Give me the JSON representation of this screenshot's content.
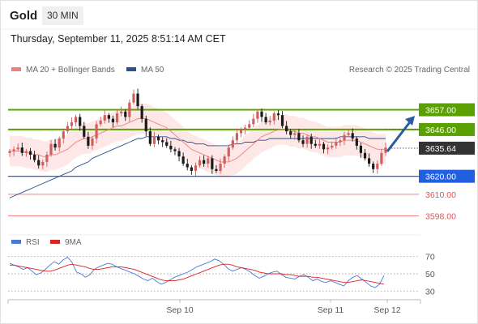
{
  "header": {
    "title": "Gold",
    "timeframe": "30 MIN",
    "datetime": "Thursday, September 11, 2025 8:51:14 AM CET"
  },
  "colors": {
    "ma20": "#f08080",
    "ma50": "#2f4f8f",
    "resistance": "#5aa000",
    "support": "#1f5fe0",
    "support_minor": "#e65050",
    "bull_candle": "#d06060",
    "bear_candle": "#1a1a1a",
    "bollinger_fill": "#fde3e3",
    "rsi": "#4a78d8",
    "rsi_ma": "#dd2222",
    "arrow": "#2a5a9f"
  },
  "legend": {
    "ma20_label": "MA 20 + Bollinger Bands",
    "ma50_label": "MA 50",
    "credit": "Research © 2025 Trading Central"
  },
  "rsi_legend": {
    "rsi_label": "RSI",
    "ma_label": "9MA"
  },
  "chart_data": [
    {
      "type": "candlestick",
      "title": "Gold 30 MIN",
      "ylim": [
        3591,
        3673
      ],
      "x_ticks": [
        "Sep 10",
        "Sep 11",
        "Sep 12"
      ],
      "current_price": 3635.64,
      "levels": [
        {
          "value": 3657.0,
          "label": "3657.00",
          "kind": "resistance"
        },
        {
          "value": 3646.0,
          "label": "3646.00",
          "kind": "resistance"
        },
        {
          "value": 3620.0,
          "label": "3620.00",
          "kind": "support"
        },
        {
          "value": 3610.0,
          "label": "3610.00",
          "kind": "support_minor"
        },
        {
          "value": 3598.0,
          "label": "3598.00",
          "kind": "support_minor"
        }
      ],
      "current_label": "3635.64",
      "candles_close": [
        3634,
        3635,
        3636,
        3633,
        3634,
        3632,
        3629,
        3626,
        3628,
        3632,
        3638,
        3636,
        3641,
        3645,
        3648,
        3650,
        3653,
        3648,
        3642,
        3637,
        3641,
        3649,
        3651,
        3654,
        3652,
        3650,
        3655,
        3656,
        3653,
        3661,
        3666,
        3659,
        3652,
        3645,
        3638,
        3642,
        3640,
        3639,
        3637,
        3635,
        3634,
        3631,
        3627,
        3625,
        3623,
        3626,
        3629,
        3627,
        3630,
        3624,
        3623,
        3627,
        3631,
        3636,
        3640,
        3644,
        3646,
        3647,
        3649,
        3652,
        3656,
        3653,
        3650,
        3651,
        3655,
        3654,
        3648,
        3645,
        3643,
        3644,
        3640,
        3638,
        3642,
        3638,
        3637,
        3638,
        3635,
        3636,
        3637,
        3639,
        3640,
        3643,
        3644,
        3641,
        3637,
        3633,
        3630,
        3627,
        3624,
        3627,
        3633,
        3636
      ],
      "ma20": [
        3634,
        3634,
        3634,
        3634,
        3633,
        3633,
        3632,
        3632,
        3631,
        3631,
        3632,
        3632,
        3633,
        3634,
        3635,
        3637,
        3639,
        3640,
        3641,
        3641,
        3642,
        3643,
        3644,
        3645,
        3646,
        3647,
        3648,
        3648,
        3649,
        3650,
        3651,
        3652,
        3652,
        3652,
        3651,
        3650,
        3649,
        3648,
        3647,
        3645,
        3643,
        3641,
        3639,
        3637,
        3635,
        3634,
        3633,
        3632,
        3631,
        3630,
        3629,
        3628,
        3628,
        3628,
        3629,
        3630,
        3632,
        3634,
        3636,
        3638,
        3640,
        3642,
        3643,
        3644,
        3645,
        3646,
        3646,
        3646,
        3645,
        3645,
        3644,
        3644,
        3643,
        3642,
        3642,
        3641,
        3640,
        3639,
        3639,
        3639,
        3639,
        3640,
        3640,
        3640,
        3640,
        3639,
        3638,
        3637,
        3636,
        3635,
        3635,
        3635
      ],
      "ma50": [
        3608,
        3609,
        3610,
        3611,
        3612,
        3613,
        3614,
        3615,
        3616,
        3617,
        3618,
        3619,
        3620,
        3621,
        3622,
        3623,
        3625,
        3626,
        3627,
        3628,
        3630,
        3631,
        3632,
        3633,
        3634,
        3635,
        3636,
        3637,
        3638,
        3639,
        3640,
        3641,
        3641,
        3642,
        3642,
        3642,
        3642,
        3642,
        3642,
        3641,
        3641,
        3640,
        3640,
        3639,
        3639,
        3638,
        3638,
        3638,
        3637,
        3637,
        3637,
        3637,
        3637,
        3637,
        3638,
        3638,
        3638,
        3639,
        3639,
        3639,
        3640,
        3640,
        3640,
        3641,
        3641,
        3641,
        3641,
        3641,
        3641,
        3641,
        3641,
        3641,
        3641,
        3641,
        3641,
        3641,
        3641,
        3641,
        3641,
        3641,
        3642,
        3642,
        3642,
        3642,
        3642,
        3642,
        3642,
        3641,
        3641,
        3641,
        3641,
        3641
      ]
    },
    {
      "type": "line",
      "title": "RSI",
      "ylim": [
        22,
        78
      ],
      "y_ticks": [
        70,
        50,
        30
      ],
      "series": [
        {
          "name": "RSI",
          "values": [
            62,
            60,
            58,
            55,
            57,
            53,
            49,
            51,
            55,
            60,
            64,
            61,
            66,
            69,
            63,
            52,
            50,
            46,
            49,
            55,
            58,
            60,
            62,
            61,
            58,
            56,
            54,
            52,
            50,
            47,
            44,
            42,
            45,
            41,
            38,
            40,
            43,
            46,
            48,
            50,
            52,
            55,
            58,
            60,
            62,
            64,
            67,
            65,
            61,
            56,
            53,
            55,
            57,
            55,
            52,
            48,
            45,
            47,
            50,
            52,
            53,
            49,
            46,
            45,
            44,
            47,
            49,
            46,
            42,
            44,
            41,
            40,
            42,
            40,
            38,
            36,
            42,
            46,
            48,
            44,
            40,
            36,
            34,
            38,
            48
          ]
        },
        {
          "name": "9MA",
          "values": [
            60,
            60,
            59,
            58,
            57,
            56,
            55,
            54,
            53,
            53,
            54,
            56,
            58,
            60,
            61,
            60,
            59,
            58,
            56,
            55,
            55,
            56,
            57,
            58,
            58,
            58,
            57,
            56,
            55,
            53,
            51,
            49,
            47,
            45,
            43,
            42,
            42,
            42,
            43,
            44,
            46,
            48,
            50,
            52,
            54,
            56,
            58,
            60,
            61,
            61,
            60,
            58,
            57,
            56,
            55,
            54,
            52,
            51,
            50,
            50,
            50,
            50,
            49,
            49,
            48,
            47,
            47,
            47,
            46,
            46,
            45,
            44,
            43,
            42,
            41,
            40,
            40,
            41,
            42,
            43,
            42,
            41,
            40,
            39,
            38
          ]
        }
      ],
      "levels": [
        70,
        50,
        30
      ]
    }
  ]
}
